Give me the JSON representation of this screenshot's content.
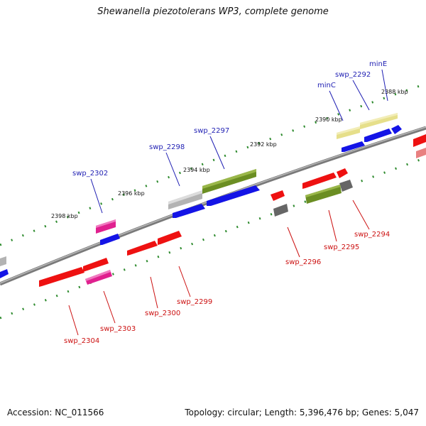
{
  "title": "Shewanella piezotolerans WP3, complete genome",
  "footer": {
    "accession": "Accession: NC_011566",
    "summary": "Topology: circular; Length: 5,396,476 bp; Genes: 5,047"
  },
  "colors": {
    "backbone": "#7a7a7a",
    "tick": "#2e8b2e",
    "label_upper": "#1f1fb3",
    "label_lower": "#cc1111",
    "red": "#ee1111",
    "blue": "#1414e6",
    "olive": "#6b8e23",
    "gray": "#b3b3b3",
    "darkgray": "#666666",
    "magenta": "#e0208f",
    "khaki": "#e6df8a",
    "pink": "#e88080"
  },
  "ruler_labels": [
    "2388 kbp",
    "2390 kbp",
    "2392 kbp",
    "2394 kbp",
    "2396 kbp",
    "2398 kbp"
  ],
  "gene_labels_upper": [
    "minE",
    "swp_2292",
    "minC",
    "swp_2297",
    "swp_2298",
    "swp_2302"
  ],
  "gene_labels_lower": [
    "swp_2294",
    "swp_2295",
    "swp_2296",
    "swp_2299",
    "swp_2300",
    "swp_2303",
    "swp_2304"
  ]
}
